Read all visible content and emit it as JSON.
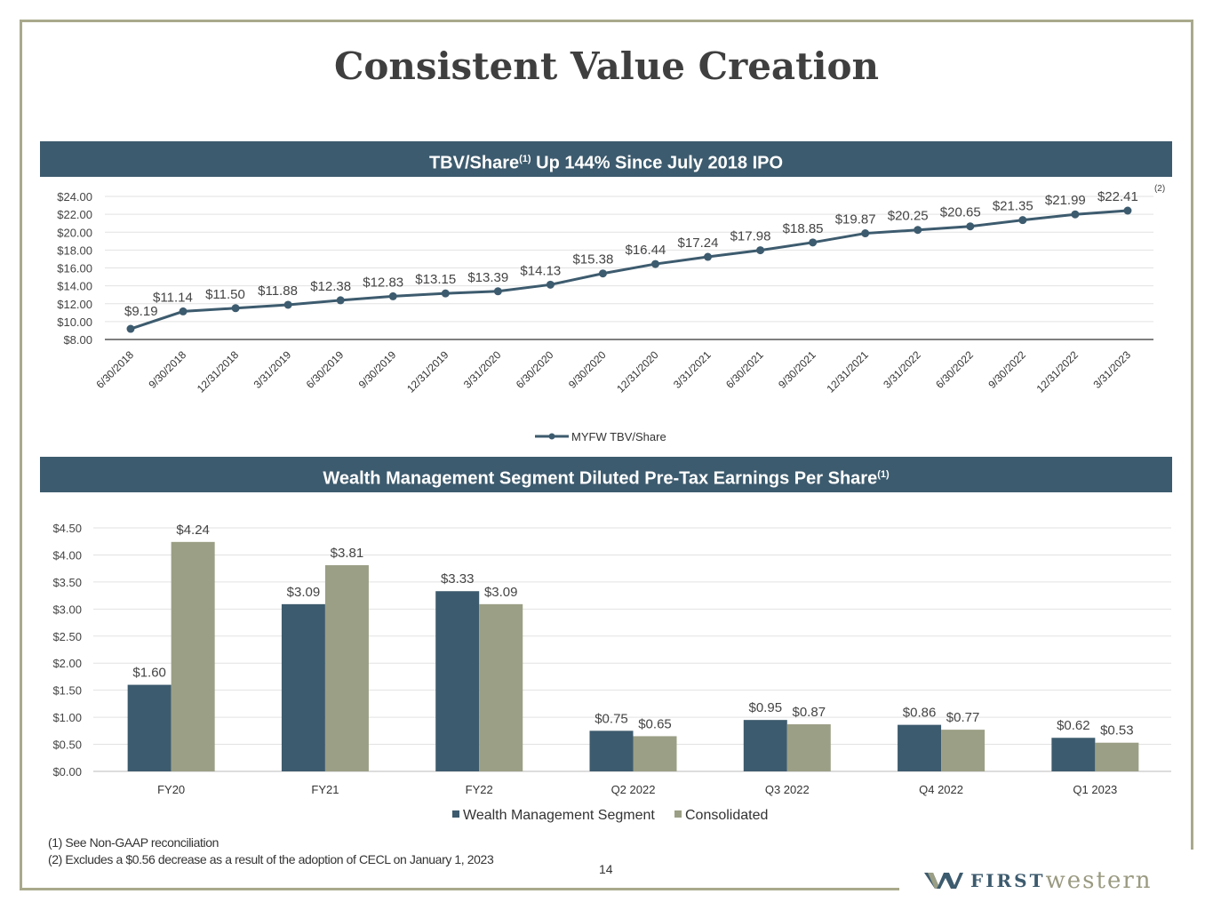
{
  "title": "Consistent Value Creation",
  "section1": {
    "header": "TBV/Share",
    "header_sup": "(1)",
    "header_rest": " Up 144% Since July 2018 IPO"
  },
  "section2": {
    "header": "Wealth Management Segment Diluted Pre-Tax Earnings Per Share",
    "header_sup": "(1)"
  },
  "chart_data": [
    {
      "type": "line",
      "categories": [
        "6/30/2018",
        "9/30/2018",
        "12/31/2018",
        "3/31/2019",
        "6/30/2019",
        "9/30/2019",
        "12/31/2019",
        "3/31/2020",
        "6/30/2020",
        "9/30/2020",
        "12/31/2020",
        "3/31/2021",
        "6/30/2021",
        "9/30/2021",
        "12/31/2021",
        "3/31/2022",
        "6/30/2022",
        "9/30/2022",
        "12/31/2022",
        "3/31/2023"
      ],
      "series": [
        {
          "name": "MYFW TBV/Share",
          "values": [
            9.19,
            11.14,
            11.5,
            11.88,
            12.38,
            12.83,
            13.15,
            13.39,
            14.13,
            15.38,
            16.44,
            17.24,
            17.98,
            18.85,
            19.87,
            20.25,
            20.65,
            21.35,
            21.99,
            22.41
          ]
        }
      ],
      "data_labels": [
        "$9.19",
        "$11.14",
        "$11.50",
        "$11.88",
        "$12.38",
        "$12.83",
        "$13.15",
        "$13.39",
        "$14.13",
        "$15.38",
        "$16.44",
        "$17.24",
        "$17.98",
        "$18.85",
        "$19.87",
        "$20.25",
        "$20.65",
        "$21.35",
        "$21.99",
        "$22.41"
      ],
      "last_label_note": "(2)",
      "yticks": [
        "$8.00",
        "$10.00",
        "$12.00",
        "$14.00",
        "$16.00",
        "$18.00",
        "$20.00",
        "$22.00",
        "$24.00"
      ],
      "ylim": [
        8,
        24
      ],
      "grid": true,
      "legend": "bottom",
      "color": "#3d5b6e"
    },
    {
      "type": "bar",
      "categories": [
        "FY20",
        "FY21",
        "FY22",
        "Q2 2022",
        "Q3 2022",
        "Q4 2022",
        "Q1 2023"
      ],
      "series": [
        {
          "name": "Wealth Management Segment",
          "values": [
            1.6,
            3.09,
            3.33,
            0.75,
            0.95,
            0.86,
            0.62
          ],
          "labels": [
            "$1.60",
            "$3.09",
            "$3.33",
            "$0.75",
            "$0.95",
            "$0.86",
            "$0.62"
          ],
          "color": "#3d5b6e"
        },
        {
          "name": "Consolidated",
          "values": [
            4.24,
            3.81,
            3.09,
            0.65,
            0.87,
            0.77,
            0.53
          ],
          "labels": [
            "$4.24",
            "$3.81",
            "$3.09",
            "$0.65",
            "$0.87",
            "$0.77",
            "$0.53"
          ],
          "color": "#9b9f85"
        }
      ],
      "yticks": [
        "$0.00",
        "$0.50",
        "$1.00",
        "$1.50",
        "$2.00",
        "$2.50",
        "$3.00",
        "$3.50",
        "$4.00",
        "$4.50"
      ],
      "ylim": [
        0,
        4.5
      ],
      "grid": true,
      "legend": "bottom"
    }
  ],
  "footnotes": [
    "(1) See Non-GAAP reconciliation",
    "(2) Excludes a $0.56 decrease as a result of the adoption of CECL on January 1, 2023"
  ],
  "page_number": "14",
  "logo": {
    "first": "FIRST",
    "western": "western"
  }
}
